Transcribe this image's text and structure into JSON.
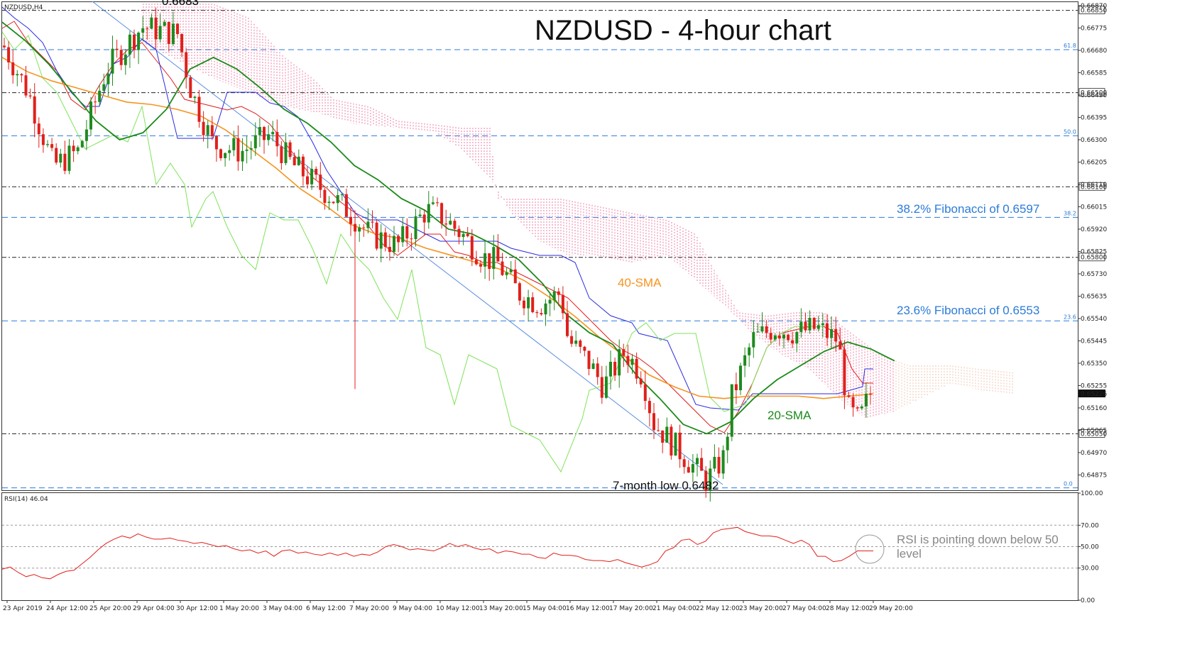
{
  "header": {
    "symbol_label": "NZDUSD,H4",
    "title": "NZDUSD - 4-hour chart",
    "top_clipped_label": "0.6683"
  },
  "annotations": {
    "fib_382": "38.2% Fibonacci of 0.6597",
    "fib_236": "23.6% Fibonacci of 0.6553",
    "sma40": "40-SMA",
    "sma20": "20-SMA",
    "low_label": "7-month low 0.6482",
    "rsi_note_line1": "RSI is pointing down below 50",
    "rsi_note_line2": "level"
  },
  "colors": {
    "bull": "#1f8a1f",
    "bear": "#e0201b",
    "sma40": "#f7931e",
    "sma20": "#1a8a1a",
    "tenkan": "#e01b1b",
    "kijun": "#2a2ae0",
    "chikou": "#7fe35a",
    "cloud": "#e8518a",
    "fib": "#2b7bd8",
    "trendline": "#5b8fe0",
    "rsi": "#e0201b"
  },
  "chart_data": [
    {
      "type": "candlestick",
      "title": "NZDUSD - 4-hour chart",
      "xlabel": "",
      "ylabel": "",
      "ylim": [
        0.6481,
        0.66885
      ],
      "x_tick_labels": [
        "23 Apr 2019",
        "24 Apr 12:00",
        "25 Apr 20:00",
        "29 Apr 04:00",
        "30 Apr 12:00",
        "1 May 20:00",
        "3 May 04:00",
        "6 May 12:00",
        "7 May 20:00",
        "9 May 04:00",
        "10 May 12:00",
        "13 May 20:00",
        "15 May 04:00",
        "16 May 12:00",
        "17 May 20:00",
        "21 May 04:00",
        "22 May 12:00",
        "23 May 20:00",
        "27 May 04:00",
        "28 May 12:00",
        "29 May 20:00"
      ],
      "y_tick_labels": [
        "0.66870",
        "0.66775",
        "0.66680",
        "0.66585",
        "0.66490",
        "0.66395",
        "0.66300",
        "0.66205",
        "0.66110",
        "0.66015",
        "0.65920",
        "0.65825",
        "0.65730",
        "0.65635",
        "0.65540",
        "0.65445",
        "0.65350",
        "0.65255",
        "0.65160",
        "0.65065",
        "0.64970",
        "0.64875"
      ],
      "y_ticks": [
        0.6687,
        0.66775,
        0.6668,
        0.66585,
        0.6649,
        0.66395,
        0.663,
        0.66205,
        0.6611,
        0.66015,
        0.6592,
        0.65825,
        0.6573,
        0.65635,
        0.6554,
        0.65445,
        0.6535,
        0.65255,
        0.6516,
        0.65065,
        0.6497,
        0.64875
      ],
      "horizontal_levels": [
        {
          "value": 0.6685,
          "label": "0.66850",
          "style": "dash-dot"
        },
        {
          "value": 0.665,
          "label": "0.66500",
          "style": "dash-dot"
        },
        {
          "value": 0.661,
          "label": "0.66100",
          "style": "dash-dot"
        },
        {
          "value": 0.658,
          "label": "0.65800",
          "style": "dash-dot"
        },
        {
          "value": 0.6505,
          "label": "0.65050",
          "style": "dash-dot"
        }
      ],
      "fibonacci_levels": [
        {
          "value": 0.66683,
          "tag": "61.8"
        },
        {
          "value": 0.66317,
          "tag": "50.0"
        },
        {
          "value": 0.6597,
          "tag": "38.2"
        },
        {
          "value": 0.6553,
          "tag": "23.6"
        },
        {
          "value": 0.6482,
          "tag": "0.0"
        }
      ],
      "current_price": {
        "value": 0.6522,
        "label": "0.65226"
      },
      "series": [
        {
          "name": "40-SMA",
          "values": [
            0.6665,
            0.6659,
            0.6655,
            0.6652,
            0.6649,
            0.6646,
            0.6645,
            0.6643,
            0.664,
            0.6634,
            0.6626,
            0.6618,
            0.6609,
            0.6602,
            0.6594,
            0.659,
            0.6588,
            0.6584,
            0.6581,
            0.6578,
            0.6575,
            0.657,
            0.6563,
            0.6555,
            0.6546,
            0.6538,
            0.653,
            0.6525,
            0.6521,
            0.652,
            0.6521,
            0.6521,
            0.6521,
            0.652,
            0.6521,
            0.6522
          ]
        },
        {
          "name": "20-SMA",
          "values": [
            0.668,
            0.6672,
            0.6662,
            0.665,
            0.6638,
            0.663,
            0.6633,
            0.6643,
            0.666,
            0.6665,
            0.666,
            0.6652,
            0.6643,
            0.6637,
            0.6629,
            0.6619,
            0.6613,
            0.6605,
            0.66,
            0.6592,
            0.659,
            0.6585,
            0.6579,
            0.6569,
            0.6556,
            0.6548,
            0.6543,
            0.653,
            0.652,
            0.6509,
            0.6505,
            0.651,
            0.652,
            0.6528,
            0.6534,
            0.654,
            0.6544,
            0.6541,
            0.6536
          ]
        }
      ]
    },
    {
      "type": "line",
      "title": "RSI(14) 46.04",
      "ylim": [
        0,
        100
      ],
      "y_tick_labels": [
        "100.00",
        "70.00",
        "50.00",
        "30.00",
        "0.00"
      ],
      "y_ticks": [
        100,
        70,
        50,
        30,
        0
      ],
      "guides": [
        70,
        50,
        30
      ],
      "series": [
        {
          "name": "RSI(14)",
          "values": [
            29,
            31,
            26,
            22,
            24,
            21,
            20,
            24,
            27,
            28,
            34,
            40,
            47,
            53,
            57,
            60,
            58,
            62,
            59,
            57,
            57,
            58,
            56,
            55,
            53,
            54,
            52,
            50,
            51,
            48,
            46,
            47,
            44,
            46,
            41,
            46,
            47,
            44,
            45,
            43,
            42,
            44,
            42,
            44,
            41,
            43,
            42,
            45,
            50,
            52,
            50,
            47,
            48,
            47,
            46,
            49,
            53,
            50,
            52,
            49,
            47,
            48,
            44,
            46,
            45,
            43,
            43,
            40,
            39,
            44,
            42,
            42,
            41,
            38,
            37,
            37,
            36,
            38,
            35,
            33,
            31,
            33,
            36,
            46,
            49,
            56,
            57,
            52,
            55,
            63,
            66,
            67,
            68,
            64,
            62,
            60,
            60,
            59,
            56,
            53,
            56,
            52,
            41,
            41,
            36,
            37,
            41,
            46,
            46,
            46
          ]
        }
      ]
    }
  ]
}
